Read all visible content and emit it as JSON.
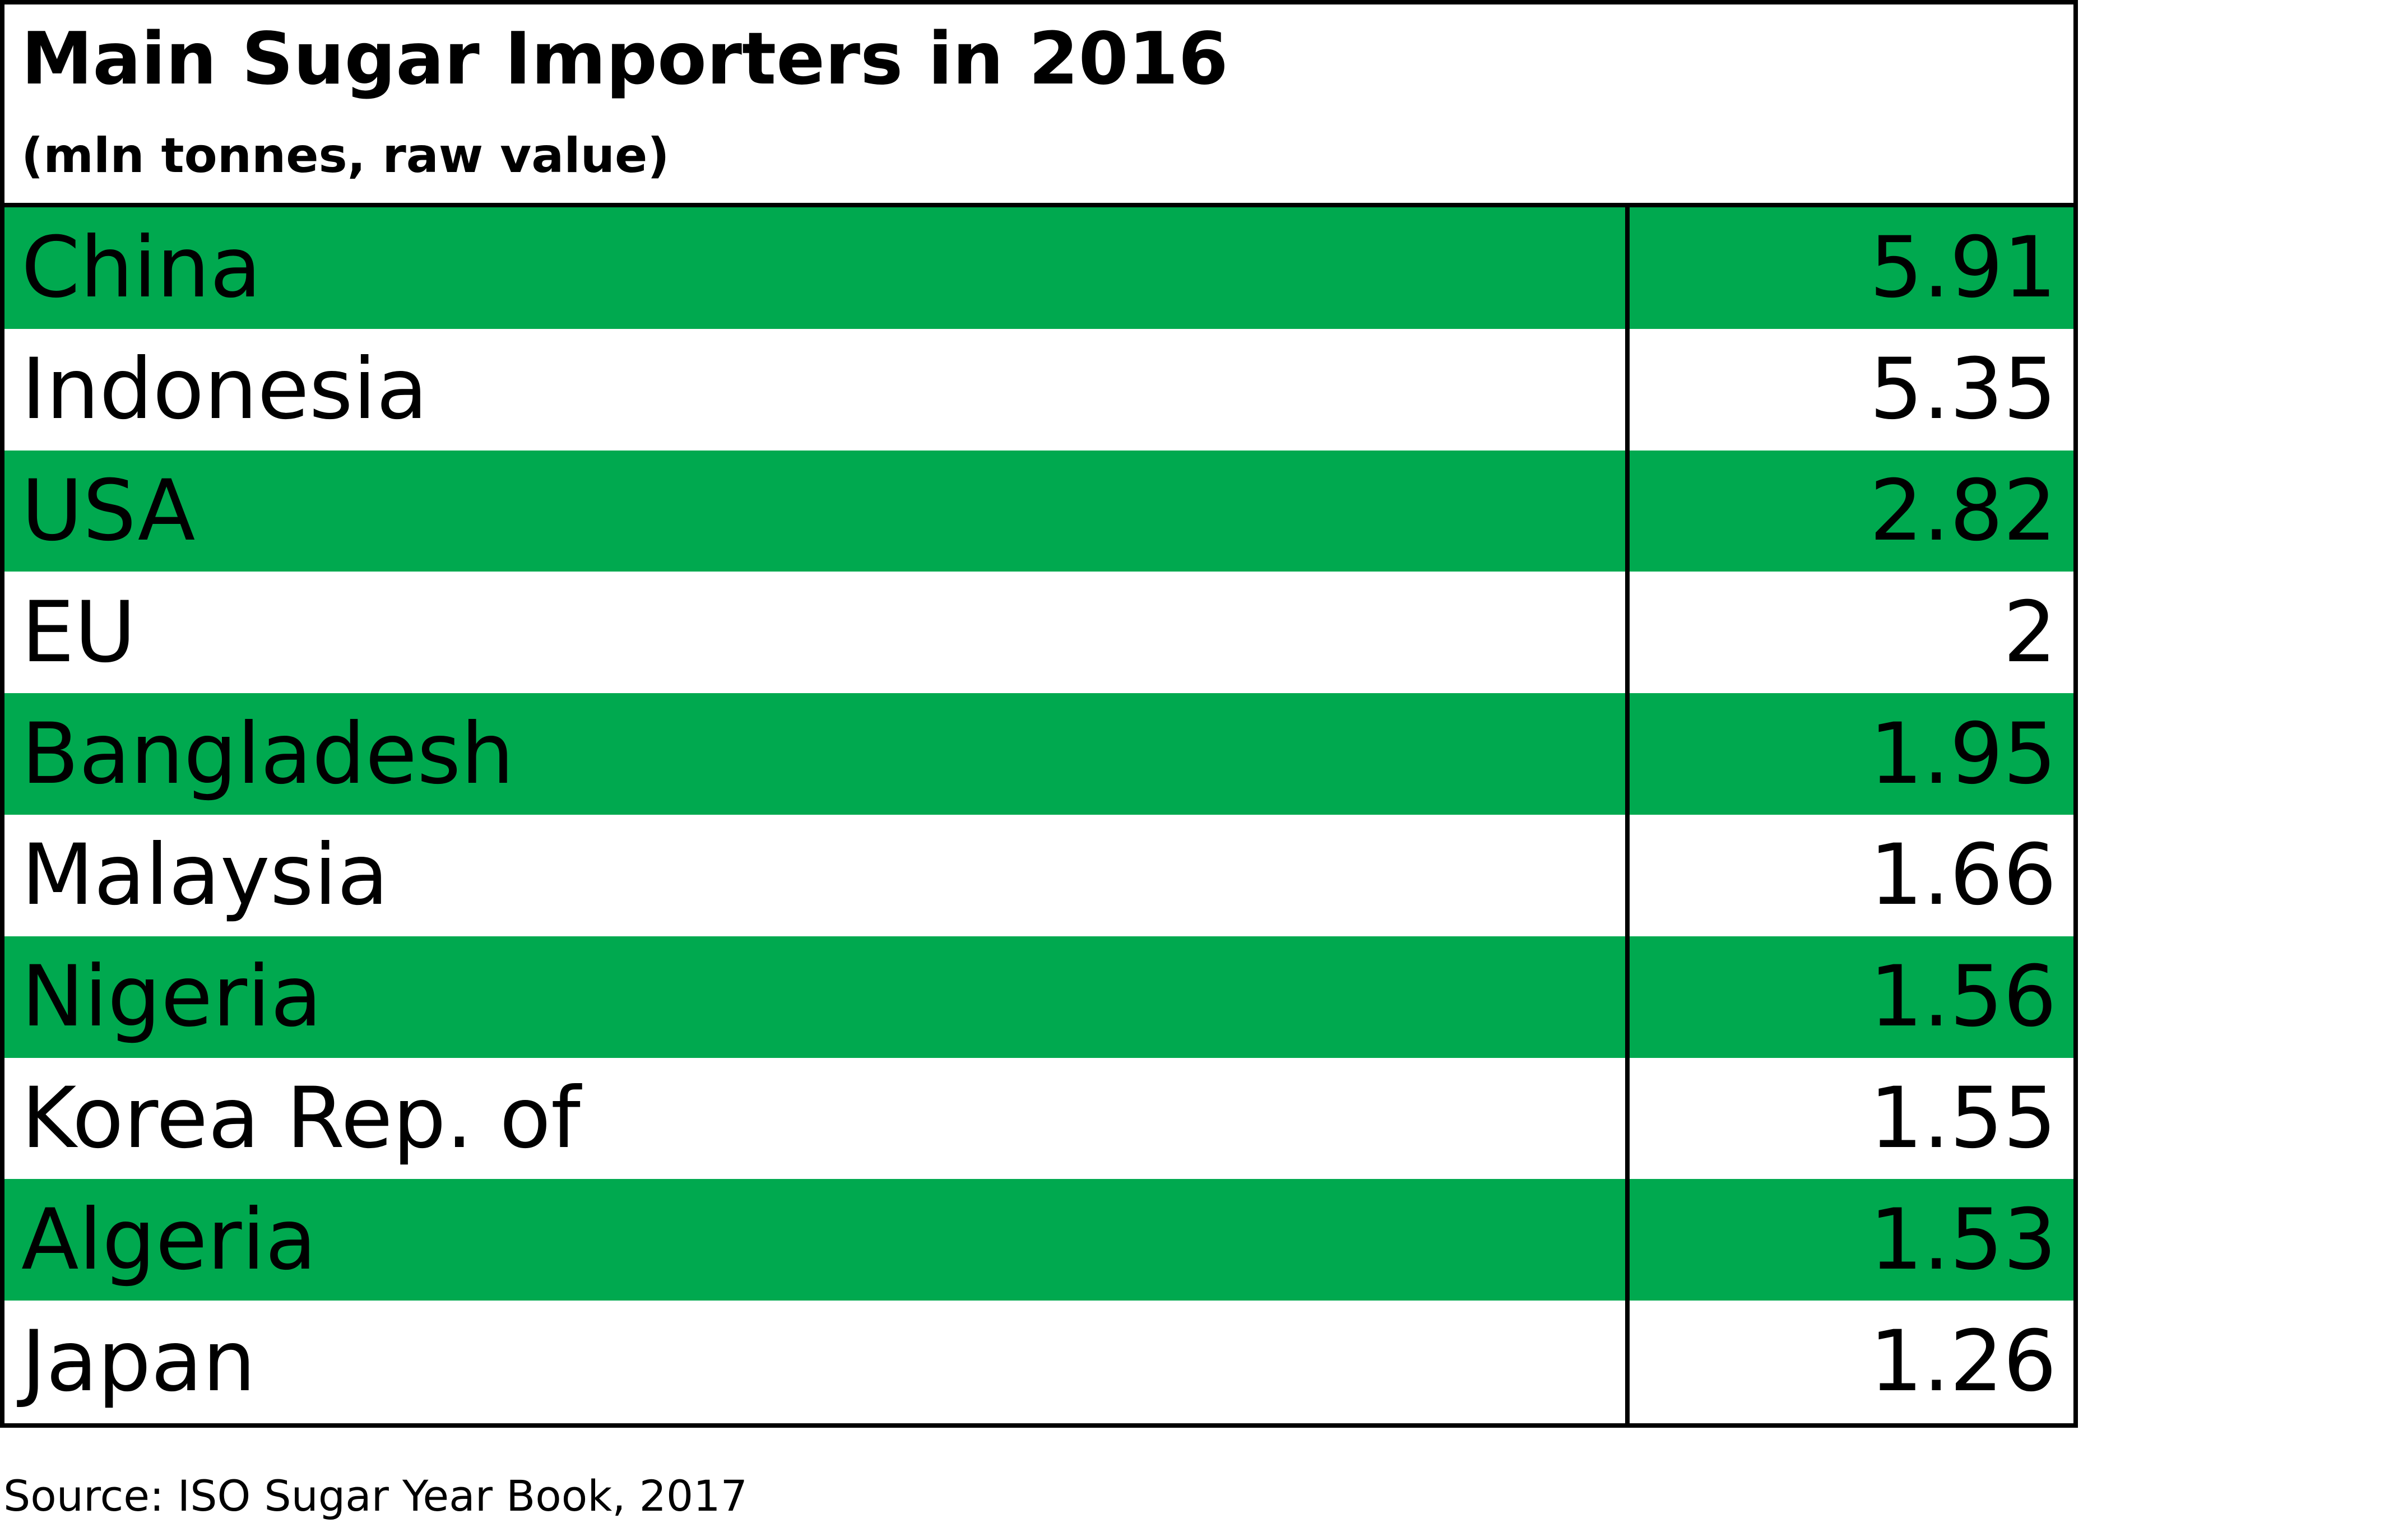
{
  "chart_data": {
    "type": "table",
    "title": "Main Sugar Importers in 2016",
    "subtitle": "(mln tonnes, raw value)",
    "rows": [
      {
        "country": "China",
        "value": "5.91"
      },
      {
        "country": "Indonesia",
        "value": "5.35"
      },
      {
        "country": "USA",
        "value": "2.82"
      },
      {
        "country": "EU",
        "value": "2"
      },
      {
        "country": "Bangladesh",
        "value": "1.95"
      },
      {
        "country": "Malaysia",
        "value": "1.66"
      },
      {
        "country": "Nigeria",
        "value": "1.56"
      },
      {
        "country": "Korea Rep. of",
        "value": "1.55"
      },
      {
        "country": "Algeria",
        "value": "1.53"
      },
      {
        "country": "Japan",
        "value": "1.26"
      }
    ],
    "row_colors": [
      "#00a94f",
      "#ffffff"
    ]
  },
  "source": "Source: ISO Sugar Year Book, 2017"
}
